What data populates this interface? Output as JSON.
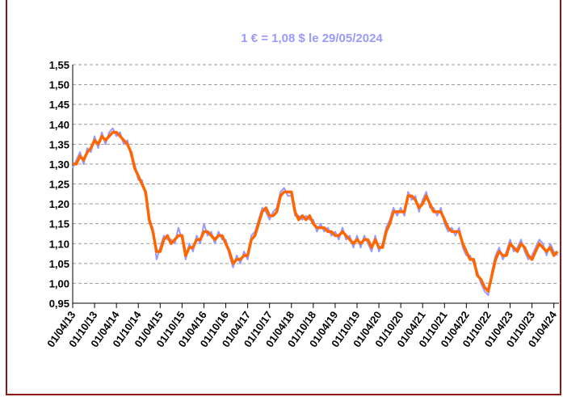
{
  "chart_data": {
    "type": "line",
    "title": "1 € = 1,08 $ le 29/05/2024",
    "categories": [
      "01/04/13",
      null,
      null,
      null,
      null,
      null,
      "01/10/13",
      null,
      null,
      null,
      null,
      null,
      "01/04/14",
      null,
      null,
      null,
      null,
      null,
      "01/10/14",
      null,
      null,
      null,
      null,
      null,
      "01/04/15",
      null,
      null,
      null,
      null,
      null,
      "01/10/15",
      null,
      null,
      null,
      null,
      null,
      "01/04/16",
      null,
      null,
      null,
      null,
      null,
      "01/10/16",
      null,
      null,
      null,
      null,
      null,
      "01/04/17",
      null,
      null,
      null,
      null,
      null,
      "01/10/17",
      null,
      null,
      null,
      null,
      null,
      "01/04/18",
      null,
      null,
      null,
      null,
      null,
      "01/10/18",
      null,
      null,
      null,
      null,
      null,
      "01/04/19",
      null,
      null,
      null,
      null,
      null,
      "01/10/19",
      null,
      null,
      null,
      null,
      null,
      "01/04/20",
      null,
      null,
      null,
      null,
      null,
      "01/10/20",
      null,
      null,
      null,
      null,
      null,
      "01/04/21",
      null,
      null,
      null,
      null,
      null,
      "01/10/21",
      null,
      null,
      null,
      null,
      null,
      "01/04/22",
      null,
      null,
      null,
      null,
      null,
      "01/10/22",
      null,
      null,
      null,
      null,
      null,
      "01/04/23",
      null,
      null,
      null,
      null,
      null,
      "01/10/23",
      null,
      null,
      null,
      null,
      null,
      "01/04/24",
      null
    ],
    "series": [
      {
        "color": "#9999ff",
        "values": [
          1.29,
          1.31,
          1.33,
          1.3,
          1.34,
          1.33,
          1.37,
          1.34,
          1.38,
          1.35,
          1.38,
          1.39,
          1.37,
          1.38,
          1.35,
          1.36,
          1.32,
          1.3,
          1.26,
          1.26,
          1.22,
          1.15,
          1.14,
          1.06,
          1.09,
          1.12,
          1.11,
          1.11,
          1.1,
          1.14,
          1.11,
          1.06,
          1.1,
          1.08,
          1.12,
          1.1,
          1.15,
          1.12,
          1.13,
          1.1,
          1.13,
          1.11,
          1.11,
          1.07,
          1.04,
          1.07,
          1.05,
          1.08,
          1.06,
          1.12,
          1.13,
          1.16,
          1.19,
          1.18,
          1.16,
          1.18,
          1.19,
          1.23,
          1.24,
          1.22,
          1.22,
          1.17,
          1.17,
          1.16,
          1.17,
          1.16,
          1.16,
          1.13,
          1.15,
          1.13,
          1.14,
          1.12,
          1.13,
          1.11,
          1.14,
          1.11,
          1.12,
          1.09,
          1.12,
          1.09,
          1.12,
          1.1,
          1.08,
          1.12,
          1.08,
          1.1,
          1.14,
          1.16,
          1.19,
          1.17,
          1.19,
          1.17,
          1.23,
          1.21,
          1.22,
          1.18,
          1.21,
          1.23,
          1.19,
          1.19,
          1.17,
          1.19,
          1.15,
          1.13,
          1.14,
          1.12,
          1.14,
          1.09,
          1.07,
          1.07,
          1.05,
          1.03,
          1.0,
          0.98,
          0.97,
          1.03,
          1.07,
          1.09,
          1.06,
          1.08,
          1.11,
          1.08,
          1.09,
          1.11,
          1.08,
          1.06,
          1.07,
          1.09,
          1.11,
          1.1,
          1.07,
          1.1,
          1.08,
          1.07
        ]
      },
      {
        "color": "#ff6600",
        "values": [
          1.3,
          1.3,
          1.32,
          1.31,
          1.33,
          1.34,
          1.36,
          1.35,
          1.37,
          1.36,
          1.37,
          1.38,
          1.38,
          1.37,
          1.36,
          1.35,
          1.33,
          1.29,
          1.27,
          1.25,
          1.23,
          1.16,
          1.13,
          1.08,
          1.08,
          1.11,
          1.12,
          1.1,
          1.11,
          1.12,
          1.12,
          1.07,
          1.09,
          1.09,
          1.11,
          1.11,
          1.13,
          1.13,
          1.12,
          1.11,
          1.12,
          1.12,
          1.1,
          1.08,
          1.05,
          1.06,
          1.06,
          1.07,
          1.07,
          1.11,
          1.12,
          1.15,
          1.18,
          1.19,
          1.17,
          1.17,
          1.18,
          1.22,
          1.23,
          1.23,
          1.23,
          1.18,
          1.16,
          1.17,
          1.16,
          1.17,
          1.15,
          1.14,
          1.14,
          1.14,
          1.13,
          1.13,
          1.12,
          1.12,
          1.13,
          1.12,
          1.11,
          1.1,
          1.11,
          1.1,
          1.11,
          1.11,
          1.09,
          1.11,
          1.09,
          1.09,
          1.13,
          1.15,
          1.18,
          1.18,
          1.18,
          1.18,
          1.22,
          1.22,
          1.21,
          1.19,
          1.2,
          1.22,
          1.2,
          1.18,
          1.18,
          1.18,
          1.16,
          1.14,
          1.13,
          1.13,
          1.13,
          1.1,
          1.08,
          1.06,
          1.06,
          1.02,
          1.01,
          0.99,
          0.98,
          1.02,
          1.06,
          1.08,
          1.07,
          1.07,
          1.1,
          1.09,
          1.08,
          1.1,
          1.09,
          1.07,
          1.06,
          1.08,
          1.1,
          1.09,
          1.08,
          1.09,
          1.07,
          1.08
        ]
      }
    ],
    "ylim": [
      0.95,
      1.55
    ],
    "yticks": [
      {
        "value": 0.95,
        "label": "0,95"
      },
      {
        "value": 1.0,
        "label": "1,00"
      },
      {
        "value": 1.05,
        "label": "1,05"
      },
      {
        "value": 1.1,
        "label": "1,10"
      },
      {
        "value": 1.15,
        "label": "1,15"
      },
      {
        "value": 1.2,
        "label": "1,20"
      },
      {
        "value": 1.25,
        "label": "1,25"
      },
      {
        "value": 1.3,
        "label": "1,30"
      },
      {
        "value": 1.35,
        "label": "1,35"
      },
      {
        "value": 1.4,
        "label": "1,40"
      },
      {
        "value": 1.45,
        "label": "1,45"
      },
      {
        "value": 1.5,
        "label": "1,50"
      },
      {
        "value": 1.55,
        "label": "1,55"
      }
    ],
    "grid": true
  }
}
